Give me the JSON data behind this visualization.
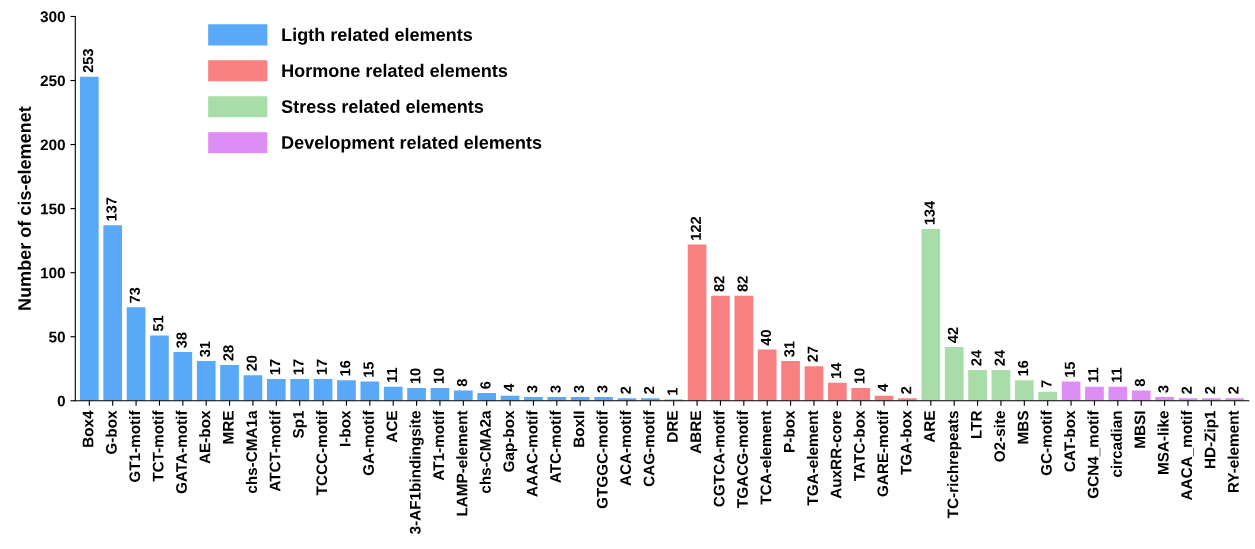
{
  "chart_data": {
    "type": "bar",
    "ylabel": "Number of cis-elemenet",
    "categories": [
      "Box4",
      "G-box",
      "GT1-motif",
      "TCT-motif",
      "GATA-motif",
      "AE-box",
      "MRE",
      "chs-CMA1a",
      "ATCT-motif",
      "Sp1",
      "TCCC-motif",
      "I-box",
      "GA-motif",
      "ACE",
      "3-AF1bindingsite",
      "AT1-motif",
      "LAMP-element",
      "chs-CMA2a",
      "Gap-box",
      "AAAC-motif",
      "ATC-motif",
      "BoxII",
      "GTGGC-motif",
      "ACA-motif",
      "CAG-motif",
      "DRE",
      "ABRE",
      "CGTCA-motif",
      "TGACG-motif",
      "TCA-element",
      "P-box",
      "TGA-element",
      "AuxRR-core",
      "TATC-box",
      "GARE-motif",
      "TGA-box",
      "ARE",
      "TC-richrepeats",
      "LTR",
      "O2-site",
      "MBS",
      "GC-motif",
      "CAT-box",
      "GCN4_motif",
      "circadian",
      "MBSI",
      "MSA-like",
      "AACA_motif",
      "HD-Zip1",
      "RY-element"
    ],
    "series": [
      {
        "name": "Ligth related elements",
        "color": "#5aa8f8",
        "values": [
          253,
          137,
          73,
          51,
          38,
          31,
          28,
          20,
          17,
          17,
          17,
          16,
          15,
          11,
          10,
          10,
          8,
          6,
          4,
          3,
          3,
          3,
          3,
          2,
          2,
          1,
          null,
          null,
          null,
          null,
          null,
          null,
          null,
          null,
          null,
          null,
          null,
          null,
          null,
          null,
          null,
          null,
          null,
          null,
          null,
          null,
          null,
          null,
          null,
          null
        ]
      },
      {
        "name": "Hormone related elements",
        "color": "#f88080",
        "values": [
          null,
          null,
          null,
          null,
          null,
          null,
          null,
          null,
          null,
          null,
          null,
          null,
          null,
          null,
          null,
          null,
          null,
          null,
          null,
          null,
          null,
          null,
          null,
          null,
          null,
          null,
          122,
          82,
          82,
          40,
          31,
          27,
          14,
          10,
          4,
          2,
          null,
          null,
          null,
          null,
          null,
          null,
          null,
          null,
          null,
          null,
          null,
          null,
          null,
          null
        ]
      },
      {
        "name": "Stress related elements",
        "color": "#a8dca8",
        "values": [
          null,
          null,
          null,
          null,
          null,
          null,
          null,
          null,
          null,
          null,
          null,
          null,
          null,
          null,
          null,
          null,
          null,
          null,
          null,
          null,
          null,
          null,
          null,
          null,
          null,
          null,
          null,
          null,
          null,
          null,
          null,
          null,
          null,
          null,
          null,
          null,
          134,
          42,
          24,
          24,
          16,
          7,
          null,
          null,
          null,
          null,
          null,
          null,
          null,
          null
        ]
      },
      {
        "name": "Development related elements",
        "color": "#dd8ef5",
        "values": [
          null,
          null,
          null,
          null,
          null,
          null,
          null,
          null,
          null,
          null,
          null,
          null,
          null,
          null,
          null,
          null,
          null,
          null,
          null,
          null,
          null,
          null,
          null,
          null,
          null,
          null,
          null,
          null,
          null,
          null,
          null,
          null,
          null,
          null,
          null,
          null,
          null,
          null,
          null,
          null,
          null,
          null,
          15,
          11,
          11,
          8,
          3,
          2,
          2,
          2
        ]
      }
    ],
    "ylim": [
      0,
      300
    ],
    "yticks": [
      0,
      50,
      100,
      150,
      200,
      250,
      300
    ],
    "grid": false,
    "legend": "top left",
    "data_labels": true
  }
}
